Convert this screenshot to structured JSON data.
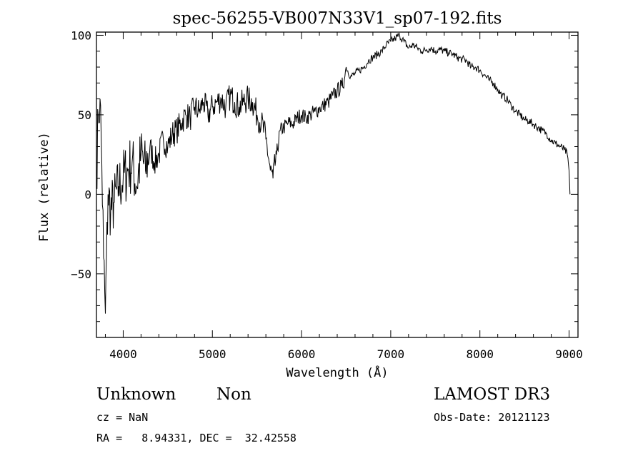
{
  "chart_data": {
    "type": "line",
    "title": "spec-56255-VB007N33V1_sp07-192.fits",
    "xlabel": "Wavelength (Å)",
    "ylabel": "Flux (relative)",
    "xlim": [
      3700,
      9100
    ],
    "ylim": [
      -90,
      102
    ],
    "x_ticks": [
      4000,
      5000,
      6000,
      7000,
      8000,
      9000
    ],
    "x_tick_labels": [
      "4000",
      "5000",
      "6000",
      "7000",
      "8000",
      "9000"
    ],
    "y_ticks": [
      -50,
      0,
      50,
      100
    ],
    "y_tick_labels": [
      "-50",
      "0",
      "50",
      "100"
    ],
    "series": [
      {
        "name": "flux",
        "color": "#000000",
        "x": [
          3700,
          3720,
          3740,
          3760,
          3780,
          3800,
          3830,
          3860,
          3900,
          3950,
          4000,
          4050,
          4100,
          4150,
          4200,
          4250,
          4300,
          4350,
          4400,
          4450,
          4500,
          4550,
          4600,
          4650,
          4700,
          4750,
          4800,
          4850,
          4900,
          4950,
          5000,
          5050,
          5100,
          5150,
          5200,
          5250,
          5300,
          5350,
          5400,
          5450,
          5500,
          5550,
          5600,
          5650,
          5680,
          5720,
          5760,
          5800,
          5850,
          5900,
          5950,
          6000,
          6050,
          6100,
          6150,
          6200,
          6250,
          6300,
          6350,
          6400,
          6450,
          6480,
          6500,
          6550,
          6600,
          6650,
          6700,
          6750,
          6800,
          6850,
          6900,
          6950,
          7000,
          7050,
          7100,
          7150,
          7200,
          7250,
          7300,
          7350,
          7400,
          7450,
          7500,
          7550,
          7600,
          7650,
          7700,
          7750,
          7800,
          7850,
          7900,
          7950,
          8000,
          8050,
          8100,
          8150,
          8200,
          8250,
          8300,
          8350,
          8400,
          8450,
          8500,
          8550,
          8600,
          8650,
          8700,
          8750,
          8800,
          8850,
          8900,
          8950,
          8980,
          9000,
          9010
        ],
        "y": [
          10,
          50,
          60,
          20,
          -40,
          -75,
          0,
          -10,
          -5,
          5,
          10,
          15,
          20,
          5,
          25,
          15,
          30,
          20,
          25,
          35,
          30,
          38,
          40,
          45,
          50,
          48,
          55,
          52,
          58,
          50,
          55,
          58,
          60,
          55,
          62,
          58,
          55,
          58,
          60,
          58,
          50,
          45,
          35,
          15,
          10,
          25,
          40,
          42,
          45,
          44,
          48,
          50,
          48,
          50,
          52,
          54,
          56,
          58,
          62,
          65,
          68,
          72,
          80,
          74,
          76,
          78,
          80,
          84,
          86,
          88,
          90,
          94,
          96,
          98,
          100,
          96,
          92,
          94,
          92,
          90,
          91,
          92,
          90,
          91,
          90,
          89,
          88,
          86,
          85,
          84,
          80,
          80,
          78,
          75,
          72,
          70,
          66,
          62,
          60,
          56,
          52,
          50,
          47,
          46,
          44,
          42,
          40,
          38,
          34,
          32,
          30,
          28,
          25,
          15,
          0
        ]
      }
    ]
  },
  "footer": {
    "left_line1_a": "Unknown",
    "left_line1_b": "Non",
    "left_line2": "cz = NaN",
    "left_line3": "RA =   8.94331, DEC =  32.42558",
    "right_line1": "LAMOST DR3",
    "right_line2": "Obs-Date: 20121123"
  }
}
